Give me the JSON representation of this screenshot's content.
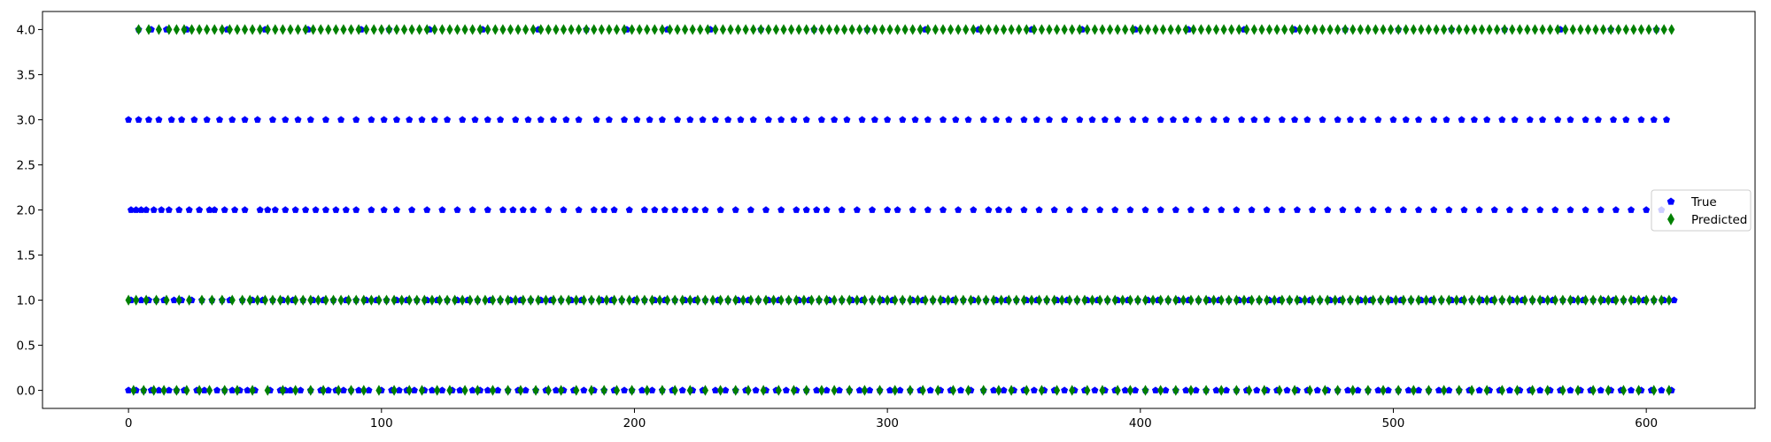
{
  "chart_data": {
    "type": "scatter",
    "title": "",
    "xlabel": "",
    "ylabel": "",
    "xlim": [
      -34,
      643
    ],
    "ylim": [
      -0.2,
      4.2
    ],
    "x_ticks": [
      0,
      100,
      200,
      300,
      400,
      500,
      600
    ],
    "y_ticks": [
      0.0,
      0.5,
      1.0,
      1.5,
      2.0,
      2.5,
      3.0,
      3.5,
      4.0
    ],
    "y_tick_labels": [
      "0.0",
      "0.5",
      "1.0",
      "1.5",
      "2.0",
      "2.5",
      "3.0",
      "3.5",
      "4.0"
    ],
    "x_tick_labels": [
      "0",
      "100",
      "200",
      "300",
      "400",
      "500",
      "600"
    ],
    "grid": false,
    "legend_position": "center-right",
    "n_points": 612,
    "note_values": "Each sample index 0-611 has a class label in {0,1,2,3,4}; series listed as index arrays per class level.",
    "series": [
      {
        "name": "True",
        "marker": "pentagon",
        "color": "#0000ff",
        "by_level": {
          "0": [
            0,
            3,
            6,
            9,
            12,
            16,
            19,
            22,
            27,
            30,
            35,
            38,
            41,
            44,
            47,
            50,
            56,
            60,
            62,
            64,
            68,
            72,
            76,
            79,
            82,
            85,
            88,
            91,
            95,
            100,
            104,
            107,
            110,
            113,
            117,
            120,
            124,
            128,
            131,
            136,
            139,
            142,
            146,
            150,
            154,
            157,
            161,
            165,
            169,
            172,
            176,
            180,
            184,
            188,
            192,
            196,
            199,
            203,
            207,
            211,
            215,
            219,
            223,
            227,
            232,
            236,
            240,
            244,
            248,
            252,
            256,
            260,
            264,
            268,
            272,
            276,
            281,
            285,
            289,
            293,
            297,
            301,
            305,
            309,
            313,
            317,
            321,
            325,
            329,
            333,
            338,
            342,
            346,
            350,
            354,
            358,
            362,
            366,
            370,
            374,
            378,
            382,
            386,
            390,
            394,
            398,
            402,
            406,
            410,
            414,
            418,
            422,
            426,
            430,
            434,
            438,
            442,
            446,
            450,
            454,
            458,
            462,
            466,
            470,
            474,
            478,
            482,
            486,
            490,
            494,
            498,
            502,
            506,
            510,
            514,
            518,
            522,
            526,
            530,
            534,
            538,
            542,
            546,
            550,
            554,
            558,
            562,
            566,
            570,
            574,
            578,
            582,
            586,
            590,
            594,
            598,
            602,
            606,
            610
          ],
          "1": [
            1,
            5,
            8,
            11,
            14,
            18,
            21,
            25,
            29,
            33,
            37,
            40,
            45,
            49,
            53,
            57,
            61,
            65,
            69,
            73,
            77,
            81,
            86,
            90,
            94,
            98,
            102,
            106,
            110,
            114,
            118,
            122,
            126,
            130,
            134,
            138,
            143,
            147,
            151,
            155,
            159,
            163,
            167,
            171,
            175,
            179,
            183,
            187,
            191,
            195,
            200,
            204,
            208,
            212,
            216,
            220,
            224,
            228,
            233,
            237,
            241,
            245,
            249,
            253,
            257,
            261,
            265,
            269,
            273,
            277,
            282,
            286,
            290,
            294,
            298,
            302,
            306,
            310,
            314,
            318,
            322,
            326,
            330,
            334,
            339,
            343,
            347,
            351,
            355,
            359,
            363,
            367,
            371,
            375,
            379,
            383,
            387,
            391,
            395,
            399,
            403,
            407,
            411,
            415,
            419,
            423,
            427,
            431,
            435,
            439,
            443,
            447,
            451,
            455,
            459,
            463,
            467,
            471,
            475,
            479,
            483,
            487,
            491,
            495,
            499,
            503,
            507,
            511,
            515,
            519,
            523,
            527,
            531,
            535,
            539,
            543,
            547,
            551,
            555,
            559,
            563,
            567,
            571,
            575,
            579,
            583,
            587,
            591,
            595,
            599,
            603,
            607,
            611
          ],
          "2": [
            1,
            3,
            5,
            7,
            10,
            13,
            16,
            20,
            24,
            28,
            32,
            34,
            38,
            42,
            46,
            52,
            55,
            58,
            62,
            66,
            70,
            74,
            78,
            82,
            86,
            90,
            96,
            101,
            106,
            112,
            118,
            124,
            130,
            136,
            142,
            148,
            152,
            156,
            160,
            166,
            172,
            178,
            184,
            188,
            192,
            198,
            204,
            208,
            212,
            216,
            220,
            224,
            228,
            234,
            240,
            246,
            252,
            258,
            264,
            268,
            272,
            276,
            282,
            288,
            294,
            300,
            304,
            310,
            316,
            322,
            328,
            334,
            340,
            344,
            348,
            354,
            360,
            366,
            372,
            378,
            384,
            390,
            396,
            402,
            408,
            414,
            420,
            426,
            432,
            438,
            444,
            450,
            456,
            462,
            468,
            474,
            480,
            486,
            492,
            498,
            504,
            510,
            516,
            522,
            528,
            534,
            540,
            546,
            552,
            558,
            564,
            570,
            576,
            582,
            588,
            594,
            600,
            606
          ],
          "3": [
            0,
            4,
            8,
            12,
            17,
            21,
            26,
            31,
            36,
            41,
            46,
            51,
            57,
            62,
            67,
            72,
            78,
            84,
            90,
            96,
            101,
            106,
            111,
            116,
            121,
            126,
            132,
            137,
            142,
            147,
            153,
            158,
            163,
            168,
            173,
            178,
            185,
            190,
            196,
            201,
            206,
            211,
            217,
            222,
            227,
            232,
            237,
            242,
            247,
            253,
            258,
            263,
            268,
            274,
            279,
            284,
            290,
            295,
            300,
            306,
            311,
            316,
            322,
            327,
            332,
            338,
            343,
            348,
            354,
            359,
            364,
            370,
            376,
            381,
            386,
            391,
            397,
            402,
            408,
            413,
            418,
            423,
            429,
            434,
            440,
            445,
            450,
            456,
            461,
            466,
            472,
            478,
            483,
            488,
            494,
            500,
            505,
            510,
            516,
            521,
            527,
            532,
            537,
            543,
            548,
            554,
            559,
            565,
            570,
            576,
            581,
            587,
            592,
            598,
            603,
            608
          ],
          "4": [
            4,
            9,
            15,
            23,
            39,
            54,
            71,
            92,
            103,
            119,
            140,
            162,
            181,
            197,
            213,
            230,
            250,
            271,
            292,
            315,
            336,
            357,
            377,
            398,
            419,
            441,
            461,
            481,
            502,
            523,
            544,
            566,
            586,
            604
          ]
        }
      },
      {
        "name": "Predicted",
        "marker": "thin_diamond",
        "color": "#008000",
        "by_level": {
          "0": [
            2,
            6,
            10,
            14,
            19,
            23,
            28,
            32,
            38,
            43,
            49,
            55,
            61,
            66,
            72,
            77,
            83,
            88,
            93,
            99,
            105,
            111,
            116,
            122,
            127,
            133,
            138,
            144,
            150,
            155,
            161,
            166,
            171,
            177,
            183,
            188,
            193,
            199,
            205,
            211,
            216,
            222,
            228,
            234,
            240,
            245,
            251,
            257,
            263,
            268,
            274,
            279,
            285,
            291,
            297,
            303,
            309,
            314,
            320,
            326,
            332,
            338,
            344,
            349,
            355,
            361,
            367,
            373,
            379,
            385,
            391,
            396,
            402,
            408,
            414,
            420,
            426,
            432,
            438,
            443,
            449,
            455,
            461,
            467,
            473,
            478,
            484,
            490,
            496,
            502,
            508,
            514,
            520,
            526,
            531,
            537,
            543,
            549,
            555,
            561,
            567,
            573,
            579,
            585,
            591,
            597,
            603,
            609
          ],
          "1": [
            0,
            3,
            7,
            11,
            15,
            20,
            24,
            29,
            33,
            37,
            41,
            45,
            48,
            51,
            54,
            57,
            60,
            63,
            66,
            69,
            72,
            75,
            78,
            81,
            84,
            87,
            90,
            93,
            96,
            99,
            102,
            105,
            108,
            111,
            114,
            117,
            120,
            123,
            126,
            129,
            132,
            135,
            138,
            141,
            144,
            147,
            150,
            153,
            156,
            159,
            162,
            165,
            168,
            171,
            174,
            177,
            180,
            183,
            186,
            189,
            192,
            195,
            198,
            201,
            204,
            207,
            210,
            213,
            216,
            219,
            222,
            225,
            228,
            231,
            234,
            237,
            240,
            243,
            246,
            249,
            252,
            255,
            258,
            261,
            264,
            267,
            270,
            273,
            276,
            279,
            282,
            285,
            288,
            291,
            294,
            297,
            300,
            303,
            306,
            309,
            312,
            315,
            318,
            321,
            324,
            327,
            330,
            333,
            336,
            339,
            342,
            345,
            348,
            351,
            354,
            357,
            360,
            363,
            366,
            369,
            372,
            375,
            378,
            381,
            384,
            387,
            390,
            393,
            396,
            399,
            402,
            405,
            408,
            411,
            414,
            417,
            420,
            423,
            426,
            429,
            432,
            435,
            438,
            441,
            444,
            447,
            450,
            453,
            456,
            459,
            462,
            465,
            468,
            471,
            474,
            477,
            480,
            483,
            486,
            489,
            492,
            495,
            498,
            501,
            504,
            507,
            510,
            513,
            516,
            519,
            522,
            525,
            528,
            531,
            534,
            537,
            540,
            543,
            546,
            549,
            552,
            555,
            558,
            561,
            564,
            567,
            570,
            573,
            576,
            579,
            582,
            585,
            588,
            591,
            594,
            597,
            600,
            603,
            606,
            609
          ],
          "4": [
            4,
            8,
            12,
            16,
            19,
            22,
            25,
            28,
            31,
            34,
            37,
            40,
            43,
            46,
            49,
            52,
            55,
            58,
            61,
            64,
            67,
            70,
            73,
            76,
            79,
            82,
            85,
            88,
            91,
            94,
            97,
            100,
            103,
            106,
            109,
            112,
            115,
            118,
            121,
            124,
            127,
            130,
            133,
            136,
            139,
            142,
            145,
            148,
            151,
            154,
            157,
            160,
            163,
            166,
            169,
            172,
            175,
            178,
            181,
            184,
            187,
            190,
            193,
            196,
            199,
            202,
            205,
            208,
            211,
            214,
            217,
            220,
            223,
            226,
            229,
            232,
            235,
            238,
            241,
            244,
            247,
            250,
            253,
            256,
            259,
            262,
            265,
            268,
            271,
            274,
            277,
            280,
            283,
            286,
            289,
            292,
            295,
            298,
            301,
            304,
            307,
            310,
            313,
            316,
            319,
            322,
            325,
            328,
            331,
            334,
            337,
            340,
            343,
            346,
            349,
            352,
            355,
            358,
            361,
            364,
            367,
            370,
            373,
            376,
            379,
            382,
            385,
            388,
            391,
            394,
            397,
            400,
            403,
            406,
            409,
            412,
            415,
            418,
            421,
            424,
            427,
            430,
            433,
            436,
            439,
            442,
            445,
            448,
            451,
            454,
            457,
            460,
            463,
            466,
            469,
            472,
            475,
            478,
            481,
            484,
            487,
            490,
            493,
            496,
            499,
            502,
            505,
            508,
            511,
            514,
            517,
            520,
            523,
            526,
            529,
            532,
            535,
            538,
            541,
            544,
            547,
            550,
            553,
            556,
            559,
            562,
            565,
            568,
            571,
            574,
            577,
            580,
            583,
            586,
            589,
            592,
            595,
            598,
            601,
            604,
            607,
            610
          ]
        }
      }
    ],
    "legend": {
      "entries": [
        "True",
        "Predicted"
      ]
    }
  },
  "colors": {
    "true_marker": "#0000ff",
    "pred_marker": "#008000",
    "axis": "#000000",
    "background": "#ffffff"
  }
}
